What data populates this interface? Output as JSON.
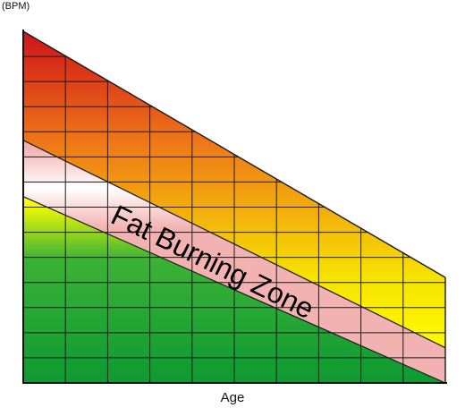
{
  "chart_data": {
    "type": "area",
    "title": "",
    "xlabel": "Age",
    "ylabel": "(BPM)",
    "grid": true,
    "x_ticks_shown": false,
    "y_ticks_shown": false,
    "x": [
      0,
      1
    ],
    "max_heart_rate": [
      1.0,
      0.3
    ],
    "fat_burning_zone_upper": [
      0.69,
      0.1
    ],
    "fat_burning_zone_lower": [
      0.53,
      0.0
    ],
    "series": [
      {
        "name": "",
        "color": "#d0121a",
        "values": [
          1.0,
          0.3
        ]
      },
      {
        "name": "Fat Burning Zone",
        "color": "#f0a8a8",
        "values": [
          0.69,
          0.1
        ]
      },
      {
        "name": "",
        "color": "#12a030",
        "values": [
          0.53,
          0.0
        ]
      }
    ],
    "annotations": [
      {
        "text": "Fat Burning Zone",
        "color": "#000000"
      }
    ],
    "colors": {
      "max_zone_top": "#d0121a",
      "max_zone_mid": "#ef7a18",
      "max_zone_bottom": "#f6e200",
      "zone_band": "#f4bcbc",
      "low_zone_top": "#ffff00",
      "low_zone_bottom": "#0d9a32",
      "grid": "#1a1a1a"
    }
  }
}
